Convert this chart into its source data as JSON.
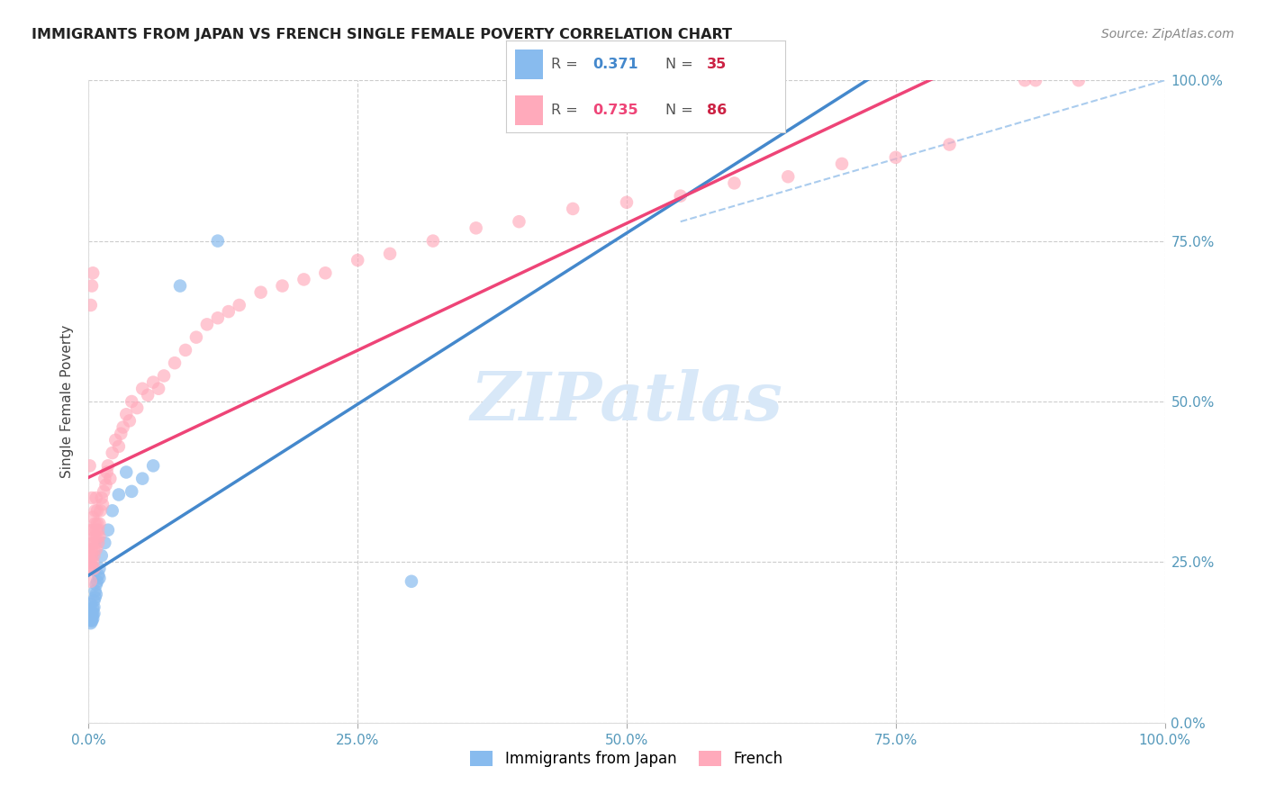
{
  "title": "IMMIGRANTS FROM JAPAN VS FRENCH SINGLE FEMALE POVERTY CORRELATION CHART",
  "source": "Source: ZipAtlas.com",
  "ylabel": "Single Female Poverty",
  "legend_label1": "Immigrants from Japan",
  "legend_label2": "French",
  "legend_R1": "0.371",
  "legend_N1": "35",
  "legend_R2": "0.735",
  "legend_N2": "86",
  "color_blue": "#88BBEE",
  "color_pink": "#FFAABB",
  "color_blue_line": "#4488CC",
  "color_pink_line": "#EE4477",
  "color_dashed": "#AACCEE",
  "background_color": "#FFFFFF",
  "grid_color": "#CCCCCC",
  "watermark_color": "#D8E8F8",
  "tick_color": "#5599BB",
  "japan_x": [
    0.001,
    0.001,
    0.002,
    0.002,
    0.002,
    0.003,
    0.003,
    0.003,
    0.003,
    0.004,
    0.004,
    0.004,
    0.005,
    0.005,
    0.005,
    0.006,
    0.006,
    0.007,
    0.007,
    0.008,
    0.009,
    0.01,
    0.01,
    0.012,
    0.015,
    0.018,
    0.022,
    0.028,
    0.035,
    0.04,
    0.05,
    0.06,
    0.085,
    0.12,
    0.3
  ],
  "japan_y": [
    0.175,
    0.165,
    0.16,
    0.155,
    0.185,
    0.17,
    0.16,
    0.172,
    0.158,
    0.168,
    0.178,
    0.162,
    0.19,
    0.18,
    0.17,
    0.195,
    0.205,
    0.215,
    0.2,
    0.22,
    0.23,
    0.24,
    0.225,
    0.26,
    0.28,
    0.3,
    0.33,
    0.355,
    0.39,
    0.36,
    0.38,
    0.4,
    0.68,
    0.75,
    0.22
  ],
  "french_x": [
    0.001,
    0.001,
    0.001,
    0.002,
    0.002,
    0.002,
    0.002,
    0.003,
    0.003,
    0.003,
    0.003,
    0.004,
    0.004,
    0.004,
    0.004,
    0.005,
    0.005,
    0.005,
    0.006,
    0.006,
    0.006,
    0.006,
    0.007,
    0.007,
    0.007,
    0.008,
    0.008,
    0.008,
    0.009,
    0.009,
    0.01,
    0.01,
    0.011,
    0.012,
    0.013,
    0.014,
    0.015,
    0.016,
    0.017,
    0.018,
    0.02,
    0.022,
    0.025,
    0.028,
    0.03,
    0.032,
    0.035,
    0.038,
    0.04,
    0.045,
    0.05,
    0.055,
    0.06,
    0.065,
    0.07,
    0.08,
    0.09,
    0.1,
    0.11,
    0.12,
    0.13,
    0.14,
    0.16,
    0.18,
    0.2,
    0.22,
    0.25,
    0.28,
    0.32,
    0.36,
    0.4,
    0.45,
    0.5,
    0.55,
    0.6,
    0.65,
    0.7,
    0.75,
    0.8,
    0.87,
    0.001,
    0.002,
    0.003,
    0.004,
    0.88,
    0.92
  ],
  "french_y": [
    0.25,
    0.28,
    0.24,
    0.26,
    0.22,
    0.25,
    0.3,
    0.27,
    0.24,
    0.26,
    0.35,
    0.28,
    0.3,
    0.25,
    0.32,
    0.27,
    0.24,
    0.26,
    0.29,
    0.31,
    0.28,
    0.33,
    0.3,
    0.27,
    0.35,
    0.29,
    0.33,
    0.31,
    0.3,
    0.28,
    0.31,
    0.29,
    0.33,
    0.35,
    0.34,
    0.36,
    0.38,
    0.37,
    0.39,
    0.4,
    0.38,
    0.42,
    0.44,
    0.43,
    0.45,
    0.46,
    0.48,
    0.47,
    0.5,
    0.49,
    0.52,
    0.51,
    0.53,
    0.52,
    0.54,
    0.56,
    0.58,
    0.6,
    0.62,
    0.63,
    0.64,
    0.65,
    0.67,
    0.68,
    0.69,
    0.7,
    0.72,
    0.73,
    0.75,
    0.77,
    0.78,
    0.8,
    0.81,
    0.82,
    0.84,
    0.85,
    0.87,
    0.88,
    0.9,
    1.0,
    0.4,
    0.65,
    0.68,
    0.7,
    1.0,
    1.0
  ],
  "ytick_labels_right": [
    "0.0%",
    "25.0%",
    "50.0%",
    "75.0%",
    "100.0%"
  ],
  "ytick_vals": [
    0.0,
    0.25,
    0.5,
    0.75,
    1.0
  ],
  "xtick_labels": [
    "0.0%",
    "25.0%",
    "50.0%",
    "75.0%",
    "100.0%"
  ],
  "xtick_vals": [
    0.0,
    0.25,
    0.5,
    0.75,
    1.0
  ],
  "xlim": [
    0.0,
    1.0
  ],
  "ylim": [
    0.0,
    1.0
  ]
}
